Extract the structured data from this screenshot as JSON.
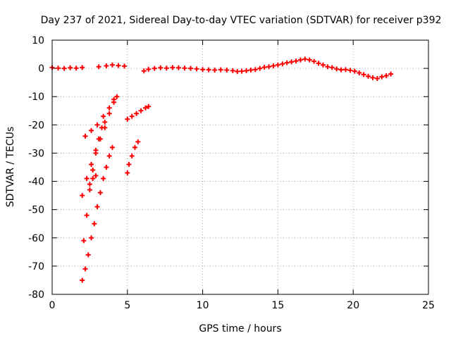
{
  "chart_data": {
    "type": "scatter",
    "title": "Day 237 of 2021, Sidereal Day-to-day VTEC variation (SDTVAR) for receiver p392",
    "xlabel": "GPS time / hours",
    "ylabel": "SDTVAR / TECUs",
    "xlim": [
      0,
      25
    ],
    "ylim": [
      -80,
      10
    ],
    "xticks": [
      0,
      5,
      10,
      15,
      20,
      25
    ],
    "yticks": [
      10,
      0,
      -10,
      -20,
      -30,
      -40,
      -50,
      -60,
      -70,
      -80
    ],
    "grid": true,
    "legend": "none",
    "marker_color": "#ff0000",
    "series": [
      {
        "values": [
          [
            0.0,
            0.3
          ],
          [
            0.4,
            0.1
          ],
          [
            0.8,
            0.0
          ],
          [
            1.2,
            0.2
          ],
          [
            1.6,
            0.1
          ],
          [
            2.0,
            0.3
          ],
          [
            3.1,
            0.6
          ],
          [
            3.6,
            0.9
          ],
          [
            4.0,
            1.2
          ],
          [
            4.4,
            1.0
          ],
          [
            4.8,
            0.8
          ],
          [
            6.1,
            -0.9
          ],
          [
            6.4,
            -0.3
          ],
          [
            6.8,
            0.0
          ],
          [
            7.2,
            0.2
          ],
          [
            7.6,
            0.1
          ],
          [
            8.0,
            0.3
          ],
          [
            8.4,
            0.2
          ],
          [
            8.8,
            0.1
          ],
          [
            9.2,
            0.0
          ],
          [
            9.6,
            -0.2
          ],
          [
            10.0,
            -0.4
          ],
          [
            10.4,
            -0.5
          ],
          [
            10.8,
            -0.6
          ],
          [
            11.2,
            -0.5
          ],
          [
            11.6,
            -0.6
          ],
          [
            12.0,
            -0.8
          ],
          [
            12.3,
            -1.1
          ],
          [
            12.6,
            -1.0
          ],
          [
            12.9,
            -0.8
          ],
          [
            13.2,
            -0.6
          ],
          [
            13.5,
            -0.4
          ],
          [
            13.8,
            0.0
          ],
          [
            14.1,
            0.4
          ],
          [
            14.4,
            0.6
          ],
          [
            14.7,
            0.9
          ],
          [
            15.0,
            1.2
          ],
          [
            15.3,
            1.6
          ],
          [
            15.6,
            2.0
          ],
          [
            15.9,
            2.3
          ],
          [
            16.2,
            2.6
          ],
          [
            16.5,
            3.0
          ],
          [
            16.8,
            3.3
          ],
          [
            17.1,
            3.0
          ],
          [
            17.4,
            2.5
          ],
          [
            17.7,
            1.8
          ],
          [
            18.0,
            1.2
          ],
          [
            18.3,
            0.6
          ],
          [
            18.6,
            0.3
          ],
          [
            18.9,
            -0.2
          ],
          [
            19.2,
            -0.5
          ],
          [
            19.5,
            -0.4
          ],
          [
            19.8,
            -0.7
          ],
          [
            20.1,
            -1.0
          ],
          [
            20.4,
            -1.6
          ],
          [
            20.7,
            -2.2
          ],
          [
            21.0,
            -2.8
          ],
          [
            21.3,
            -3.3
          ],
          [
            21.6,
            -3.6
          ],
          [
            21.9,
            -3.0
          ],
          [
            22.2,
            -2.6
          ],
          [
            22.5,
            -2.0
          ],
          [
            2.0,
            -45
          ],
          [
            2.3,
            -39
          ],
          [
            2.6,
            -34
          ],
          [
            2.9,
            -29
          ],
          [
            3.2,
            -25
          ],
          [
            3.5,
            -21
          ],
          [
            3.8,
            -16
          ],
          [
            4.1,
            -12
          ],
          [
            4.3,
            -10
          ],
          [
            2.2,
            -24
          ],
          [
            2.6,
            -22
          ],
          [
            3.0,
            -20
          ],
          [
            3.4,
            -17
          ],
          [
            3.8,
            -14
          ],
          [
            4.1,
            -11
          ],
          [
            2.1,
            -61
          ],
          [
            2.3,
            -52
          ],
          [
            2.5,
            -43
          ],
          [
            2.7,
            -36
          ],
          [
            2.9,
            -30
          ],
          [
            3.1,
            -25
          ],
          [
            3.3,
            -21
          ],
          [
            3.5,
            -19
          ],
          [
            2.0,
            -75
          ],
          [
            2.2,
            -71
          ],
          [
            2.4,
            -66
          ],
          [
            2.6,
            -60
          ],
          [
            2.8,
            -55
          ],
          [
            3.0,
            -49
          ],
          [
            3.2,
            -44
          ],
          [
            3.4,
            -39
          ],
          [
            3.6,
            -35
          ],
          [
            3.8,
            -31
          ],
          [
            4.0,
            -28
          ],
          [
            2.5,
            -41
          ],
          [
            2.7,
            -39
          ],
          [
            2.9,
            -38
          ],
          [
            5.0,
            -18
          ],
          [
            5.3,
            -17
          ],
          [
            5.6,
            -16
          ],
          [
            5.9,
            -15
          ],
          [
            6.2,
            -14
          ],
          [
            6.4,
            -13.5
          ],
          [
            5.0,
            -37
          ],
          [
            5.1,
            -34
          ],
          [
            5.3,
            -31
          ],
          [
            5.5,
            -28
          ],
          [
            5.7,
            -26
          ]
        ]
      }
    ]
  }
}
